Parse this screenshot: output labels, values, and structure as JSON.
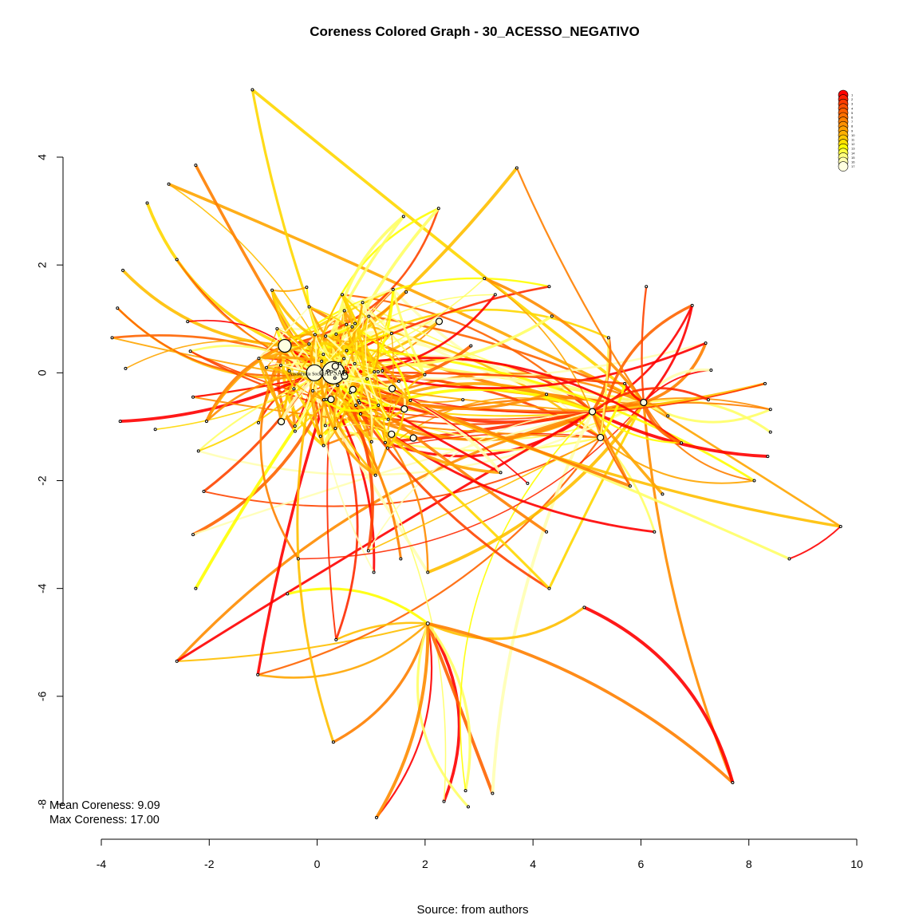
{
  "title": "Coreness Colored Graph - 30_ACESSO_NEGATIVO",
  "caption": "Source: from authors",
  "stats": {
    "mean": "Mean Coreness: 9.09",
    "max": "Max Coreness: 17.00"
  },
  "chart_data": {
    "type": "network",
    "xlim": [
      -4,
      10
    ],
    "ylim": [
      -8,
      4
    ],
    "x_ticks": [
      "-4",
      "-2",
      "0",
      "2",
      "4",
      "6",
      "8",
      "10"
    ],
    "y_ticks": [
      "4",
      "2",
      "0",
      "-2",
      "-4",
      "-6",
      "-8"
    ],
    "legend": {
      "position": "top-right",
      "entries": [
        "1",
        "2",
        "3",
        "4",
        "5",
        "6",
        "7",
        "8",
        "9",
        "10",
        "11",
        "12",
        "13",
        "14",
        "15",
        "16",
        "17"
      ],
      "colors": [
        "#ff0000",
        "#ff1e00",
        "#ff3c00",
        "#ff5000",
        "#ff6000",
        "#ff7000",
        "#ff8000",
        "#ff9000",
        "#ffa000",
        "#ffb000",
        "#ffc800",
        "#ffe000",
        "#ffff00",
        "#ffff40",
        "#ffff80",
        "#ffffb0",
        "#ffffe0"
      ]
    },
    "labeled_nodes": [
      {
        "label": "CAPSAD",
        "x": 0.3,
        "y": 0.0,
        "coreness": 17
      },
      {
        "label": "Assistência Social",
        "x": -0.05,
        "y": 0.0,
        "coreness": 17
      }
    ],
    "colors": {
      "high_coreness": "#ffff80",
      "mid_coreness": "#ff8c00",
      "low_coreness": "#ff0000"
    }
  }
}
